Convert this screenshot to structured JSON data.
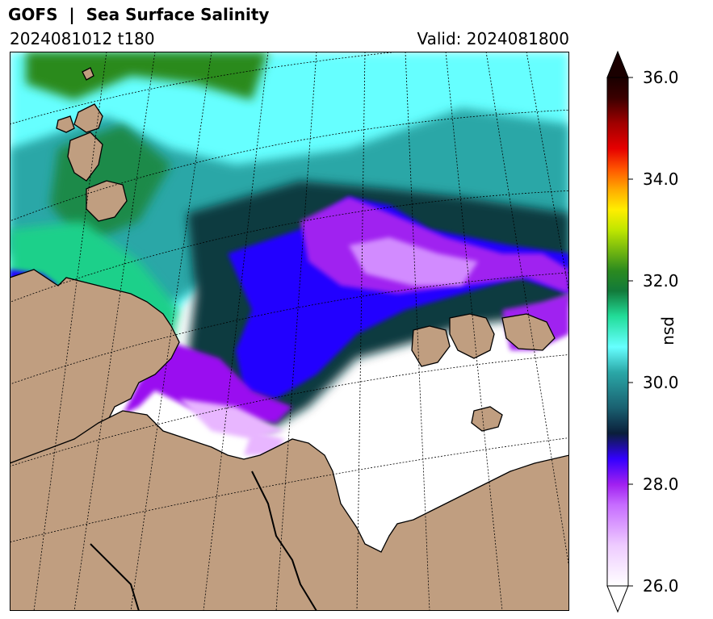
{
  "header": {
    "title": "GOFS  |  Sea Surface Salinity",
    "run": "2024081012 t180",
    "valid": "Valid: 2024081800"
  },
  "colorbar": {
    "label": "psu",
    "ticks": [
      "36.0",
      "34.0",
      "32.0",
      "30.0",
      "28.0",
      "26.0"
    ],
    "min": 26.0,
    "max": 36.0,
    "extend": "both"
  },
  "colors": {
    "land": "#c09e80",
    "ocean_low": "#ffffff",
    "purple": "#a020f0",
    "blue": "#2200ff",
    "dark_teal": "#0b3b40",
    "teal": "#2aa7a7",
    "cyan": "#66ffff",
    "green": "#2b8a1f",
    "gridline": "#000000"
  },
  "map": {
    "variable": "sea-surface-salinity",
    "graticule": "dotted",
    "land_color": "#c09e80"
  }
}
